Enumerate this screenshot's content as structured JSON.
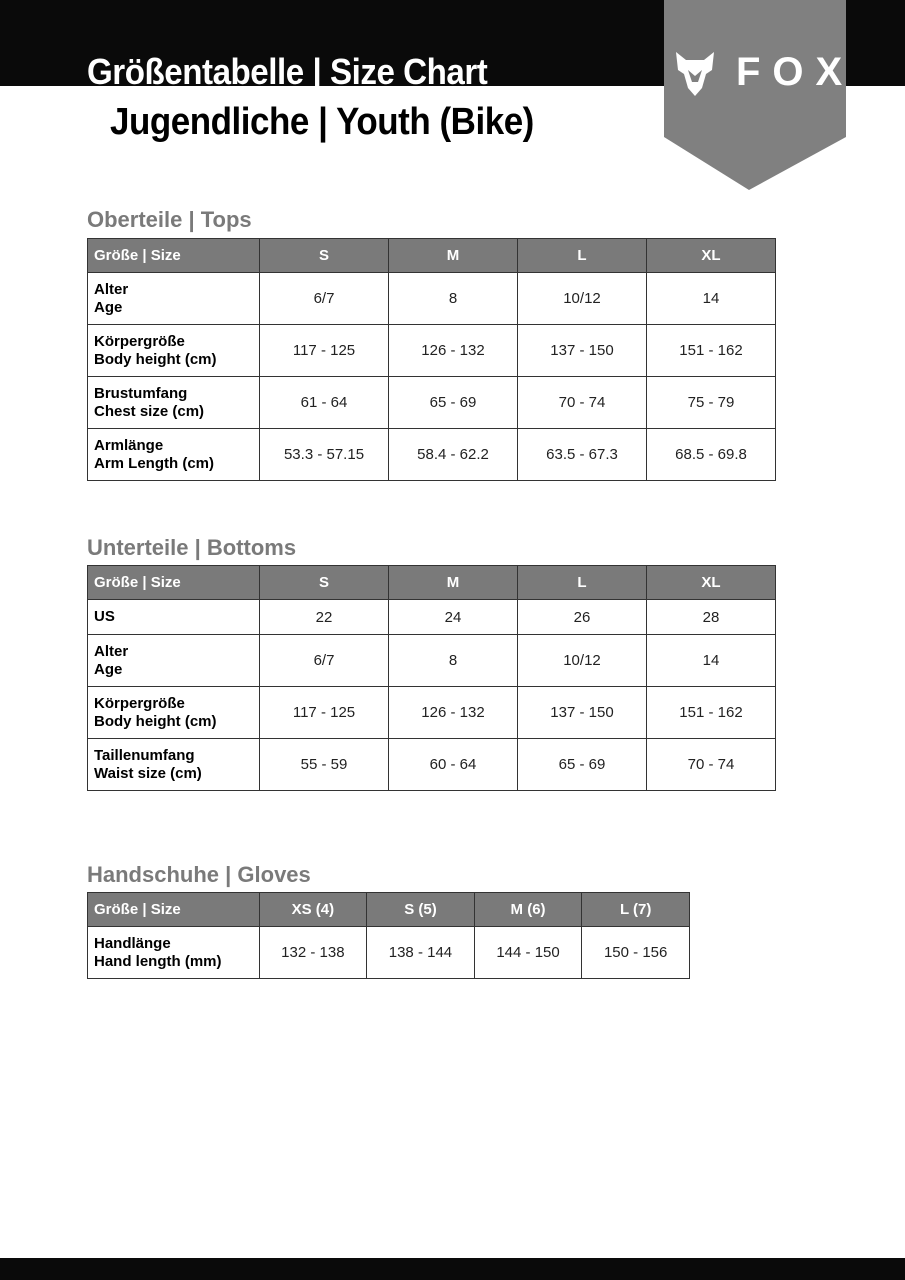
{
  "header": {
    "title": "Größentabelle | Size Chart",
    "subtitle": "Jugendliche | Youth (Bike)",
    "brand": "FOX",
    "logo_icon": "fox-head-icon"
  },
  "colors": {
    "band": "#0a0a0a",
    "ribbon": "#808080",
    "table_header": "#7a7a7a",
    "section_title": "#7a7a7a"
  },
  "tops": {
    "title": "Oberteile | Tops",
    "headers": [
      "Größe | Size",
      "S",
      "M",
      "L",
      "XL"
    ],
    "rows": [
      {
        "label1": "Alter",
        "label2": "Age",
        "values": [
          "6/7",
          "8",
          "10/12",
          "14"
        ]
      },
      {
        "label1": "Körpergröße",
        "label2": "Body height (cm)",
        "values": [
          "117 - 125",
          "126 - 132",
          "137 - 150",
          "151 - 162"
        ]
      },
      {
        "label1": "Brustumfang",
        "label2": "Chest size (cm)",
        "values": [
          "61 - 64",
          "65 - 69",
          "70 - 74",
          "75 - 79"
        ]
      },
      {
        "label1": "Armlänge",
        "label2": "Arm Length (cm)",
        "values": [
          "53.3 - 57.15",
          "58.4 - 62.2",
          "63.5 - 67.3",
          "68.5 - 69.8"
        ]
      }
    ]
  },
  "bottoms": {
    "title": "Unterteile | Bottoms",
    "headers": [
      "Größe | Size",
      "S",
      "M",
      "L",
      "XL"
    ],
    "rows": [
      {
        "label1": "US",
        "label2": "",
        "values": [
          "22",
          "24",
          "26",
          "28"
        ]
      },
      {
        "label1": "Alter",
        "label2": "Age",
        "values": [
          "6/7",
          "8",
          "10/12",
          "14"
        ]
      },
      {
        "label1": "Körpergröße",
        "label2": "Body height (cm)",
        "values": [
          "117 - 125",
          "126 - 132",
          "137 - 150",
          "151 - 162"
        ]
      },
      {
        "label1": "Taillenumfang",
        "label2": "Waist size (cm)",
        "values": [
          "55 - 59",
          "60 - 64",
          "65 - 69",
          "70 - 74"
        ]
      }
    ]
  },
  "gloves": {
    "title": "Handschuhe | Gloves",
    "headers": [
      "Größe | Size",
      "XS (4)",
      "S (5)",
      "M (6)",
      "L (7)"
    ],
    "rows": [
      {
        "label1": "Handlänge",
        "label2": "Hand length (mm)",
        "values": [
          "132 - 138",
          "138 - 144",
          "144 - 150",
          "150 - 156"
        ]
      }
    ]
  }
}
